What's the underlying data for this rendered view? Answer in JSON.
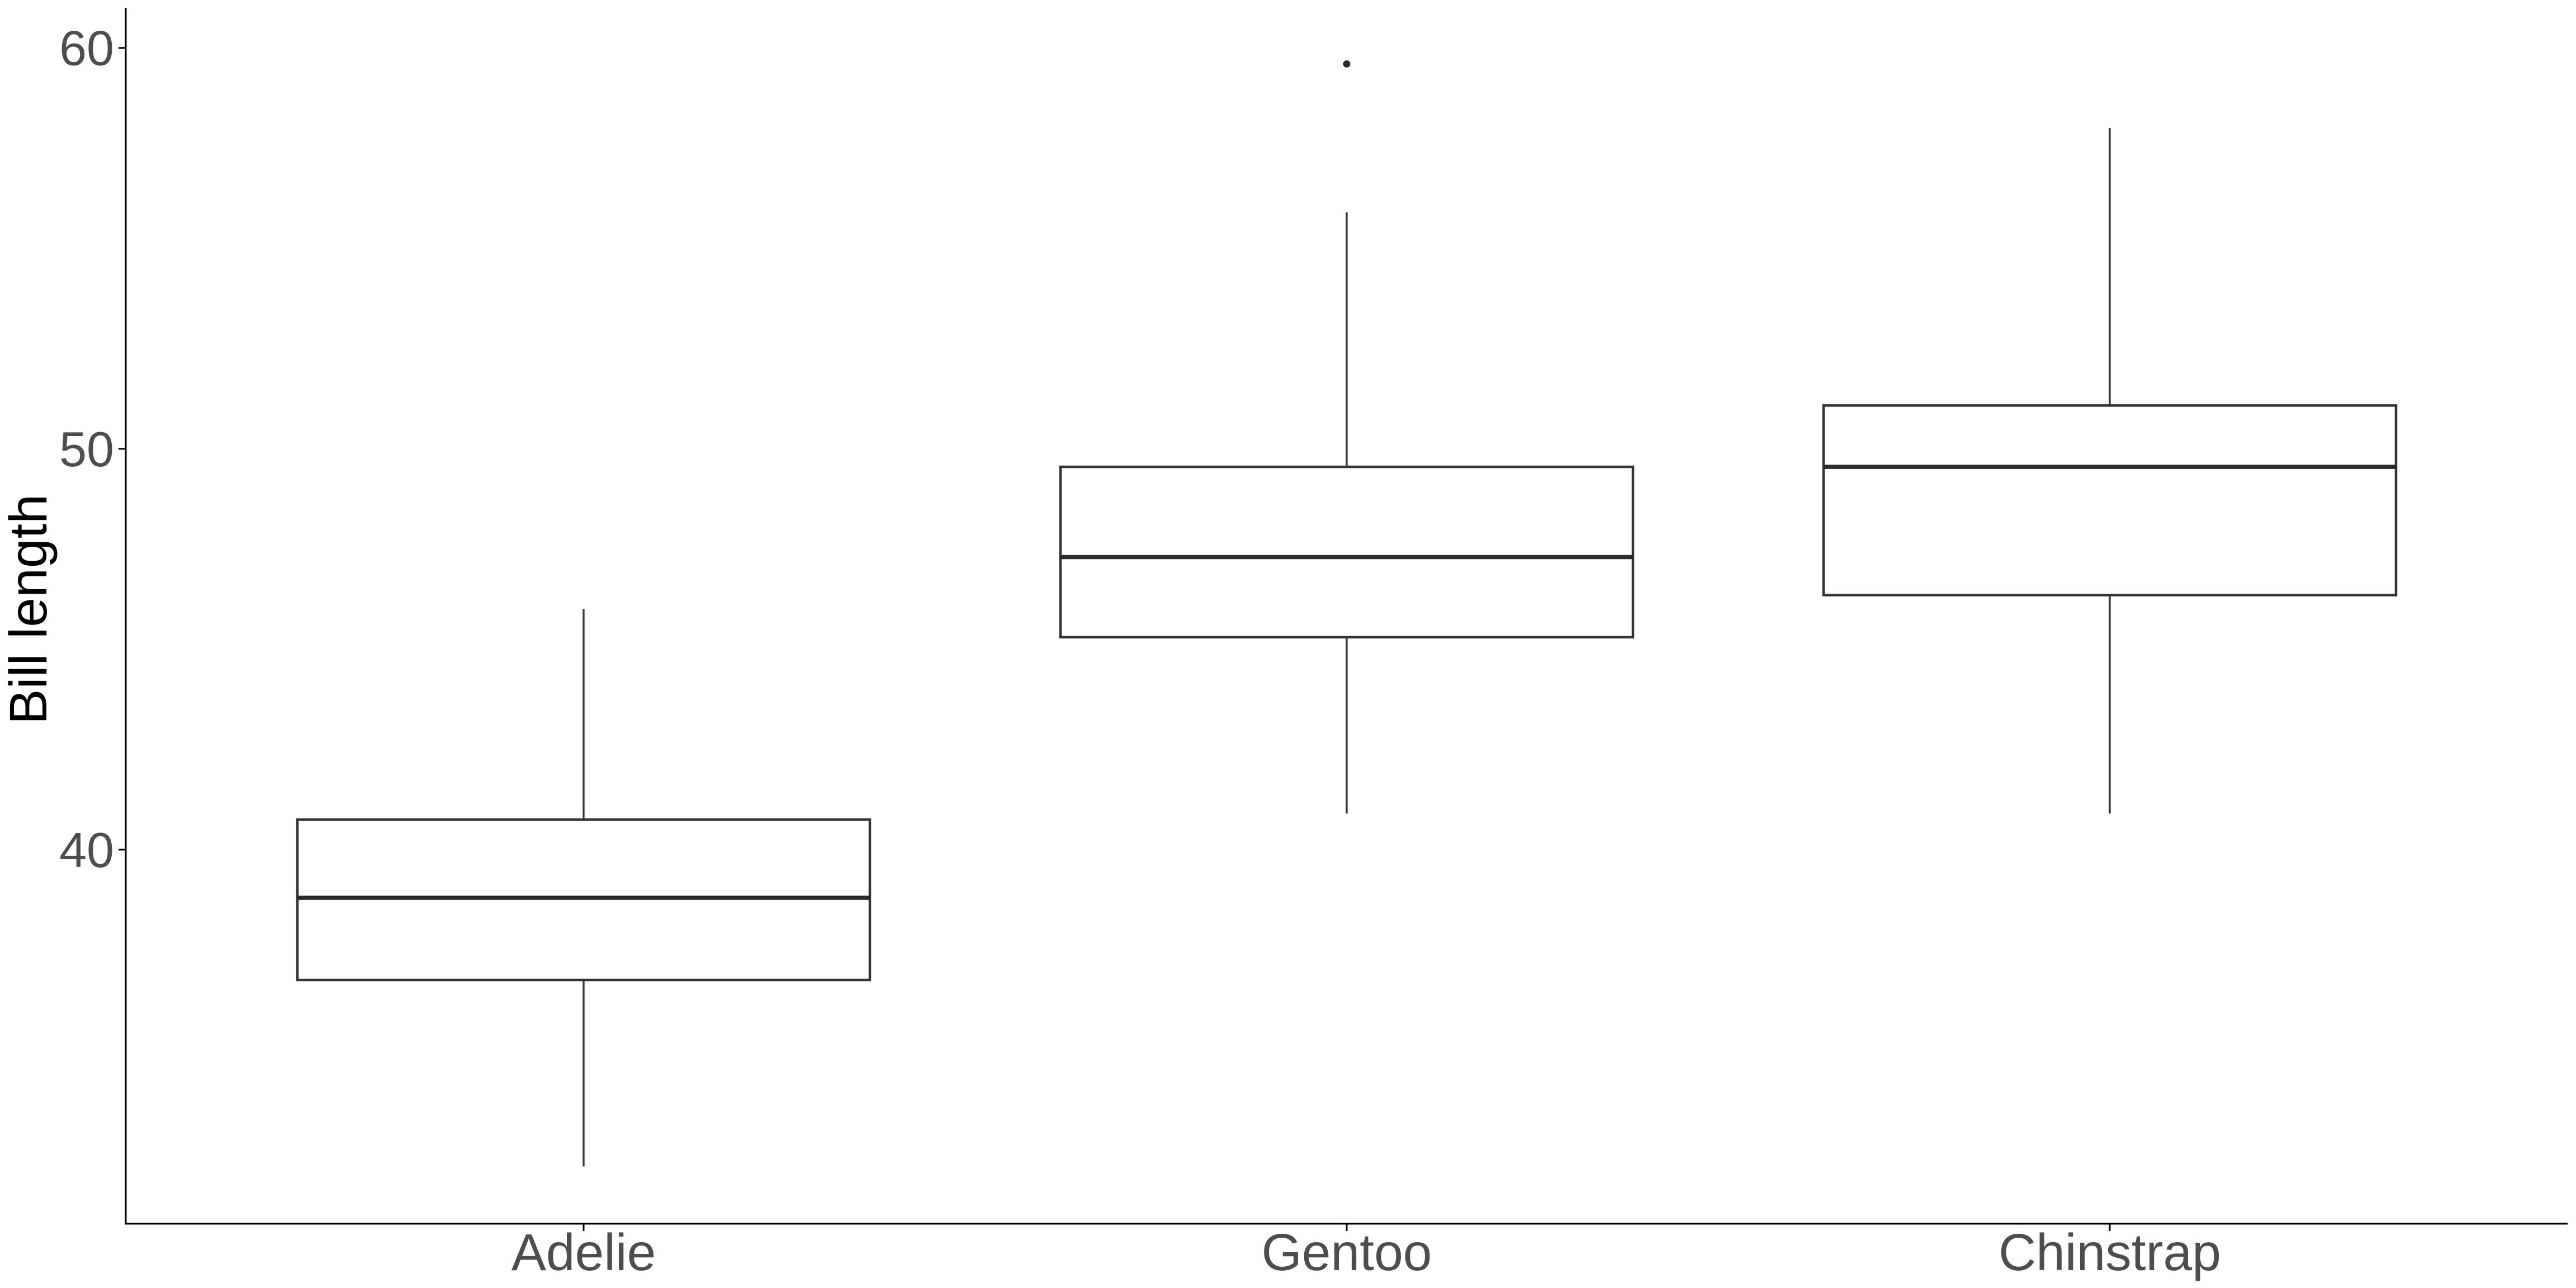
{
  "page": {
    "background": "#ffffff"
  },
  "chart_data": {
    "type": "boxplot",
    "title": "",
    "xlabel": "",
    "ylabel": "Bill length",
    "categories": [
      "Adelie",
      "Gentoo",
      "Chinstrap"
    ],
    "y_ticks": [
      {
        "value": 40,
        "label": "40"
      },
      {
        "value": 50,
        "label": "50"
      },
      {
        "value": 60,
        "label": "60"
      }
    ],
    "ylim": [
      30.67,
      61.0
    ],
    "grid": false,
    "legend": false,
    "orientation": "vertical",
    "series": [
      {
        "name": "Adelie",
        "whisker_low": 32.1,
        "q1": 36.75,
        "median": 38.8,
        "q3": 40.75,
        "whisker_high": 46.0,
        "outliers": []
      },
      {
        "name": "Gentoo",
        "whisker_low": 40.9,
        "q1": 45.3,
        "median": 47.3,
        "q3": 49.55,
        "whisker_high": 55.9,
        "outliers": [
          59.6
        ]
      },
      {
        "name": "Chinstrap",
        "whisker_low": 40.9,
        "q1": 46.35,
        "median": 49.55,
        "q3": 51.08,
        "whisker_high": 58.0,
        "outliers": []
      }
    ],
    "colors": {
      "axis": "#000000",
      "tick": "#000000",
      "box_stroke": "#333333",
      "box_fill": "#ffffff",
      "median": "#2a2a2a",
      "outlier": "#2a2a2a",
      "tick_label": "#4d4d4d",
      "axis_title": "#000000"
    }
  }
}
